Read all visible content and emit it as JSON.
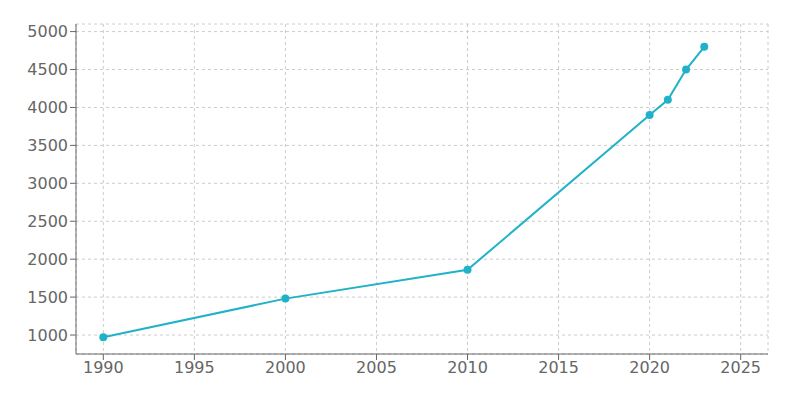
{
  "chart_data": {
    "type": "line",
    "x": [
      1990,
      2000,
      2010,
      2020,
      2021,
      2022,
      2023
    ],
    "values": [
      970,
      1480,
      1860,
      3900,
      4100,
      4500,
      4800
    ],
    "color": "#20b2c8",
    "marker": "circle",
    "xlim": [
      1988.5,
      2026.5
    ],
    "ylim": [
      750,
      5100
    ],
    "xticks": [
      1990,
      1995,
      2000,
      2005,
      2010,
      2015,
      2020,
      2025
    ],
    "yticks": [
      1000,
      1500,
      2000,
      2500,
      3000,
      3500,
      4000,
      4500,
      5000
    ],
    "grid": true
  }
}
